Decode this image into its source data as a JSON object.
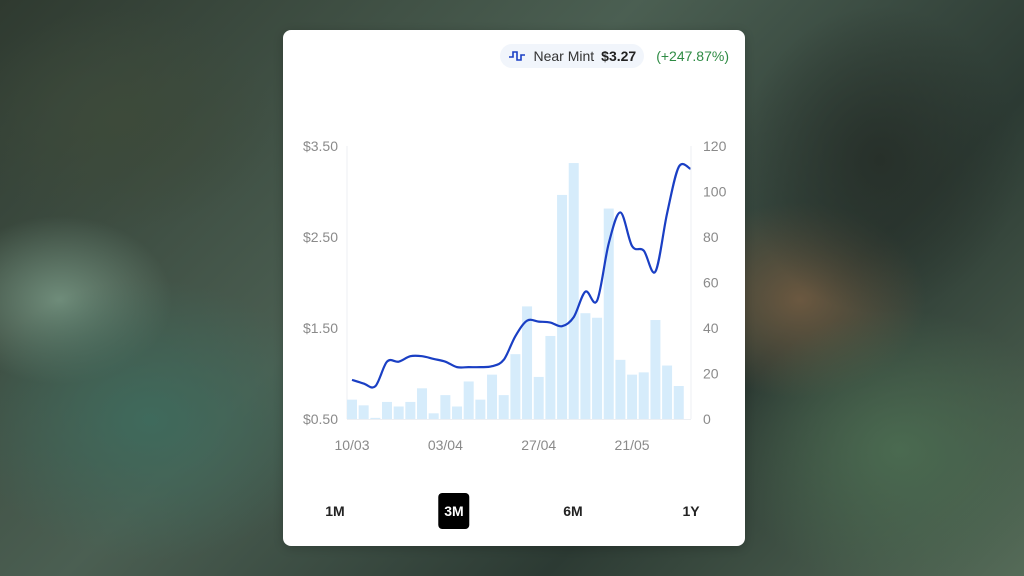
{
  "legend": {
    "icon": "step-line-icon",
    "condition": "Near Mint",
    "price": "$3.27",
    "change": "(+247.87%)"
  },
  "colors": {
    "line": "#1a3fc4",
    "bars": "#d6ecfb",
    "change": "#2e8b44"
  },
  "ranges": [
    {
      "label": "1M",
      "active": false
    },
    {
      "label": "3M",
      "active": true
    },
    {
      "label": "6M",
      "active": false
    },
    {
      "label": "1Y",
      "active": false
    }
  ],
  "chart_data": {
    "type": "bar+line",
    "x_tick_labels": [
      "10/03",
      "03/04",
      "27/04",
      "21/05"
    ],
    "left_axis": {
      "ticks": [
        "$0.50",
        "$1.50",
        "$2.50",
        "$3.50"
      ],
      "range": [
        0.5,
        3.5
      ]
    },
    "right_axis": {
      "ticks": [
        "0",
        "20",
        "40",
        "60",
        "80",
        "100",
        "120"
      ],
      "range": [
        0,
        120
      ]
    },
    "series": [
      {
        "type": "bar",
        "axis": "right",
        "values": [
          8.5,
          6,
          0.5,
          7.5,
          5.5,
          7.5,
          13.5,
          2.5,
          10.5,
          5.5,
          16.5,
          8.5,
          19.5,
          10.5,
          28.5,
          49.5,
          18.5,
          36.5,
          98.5,
          112.5,
          46.5,
          44.5,
          92.5,
          26,
          19.5,
          20.5,
          43.5,
          23.5,
          14.5,
          0
        ]
      },
      {
        "type": "line",
        "axis": "left",
        "values": [
          0.93,
          0.89,
          0.86,
          1.13,
          1.13,
          1.19,
          1.19,
          1.16,
          1.13,
          1.07,
          1.07,
          1.07,
          1.08,
          1.15,
          1.41,
          1.58,
          1.57,
          1.56,
          1.52,
          1.62,
          1.9,
          1.8,
          2.43,
          2.77,
          2.4,
          2.35,
          2.12,
          2.76,
          3.27,
          3.25
        ]
      }
    ],
    "grid": false
  }
}
